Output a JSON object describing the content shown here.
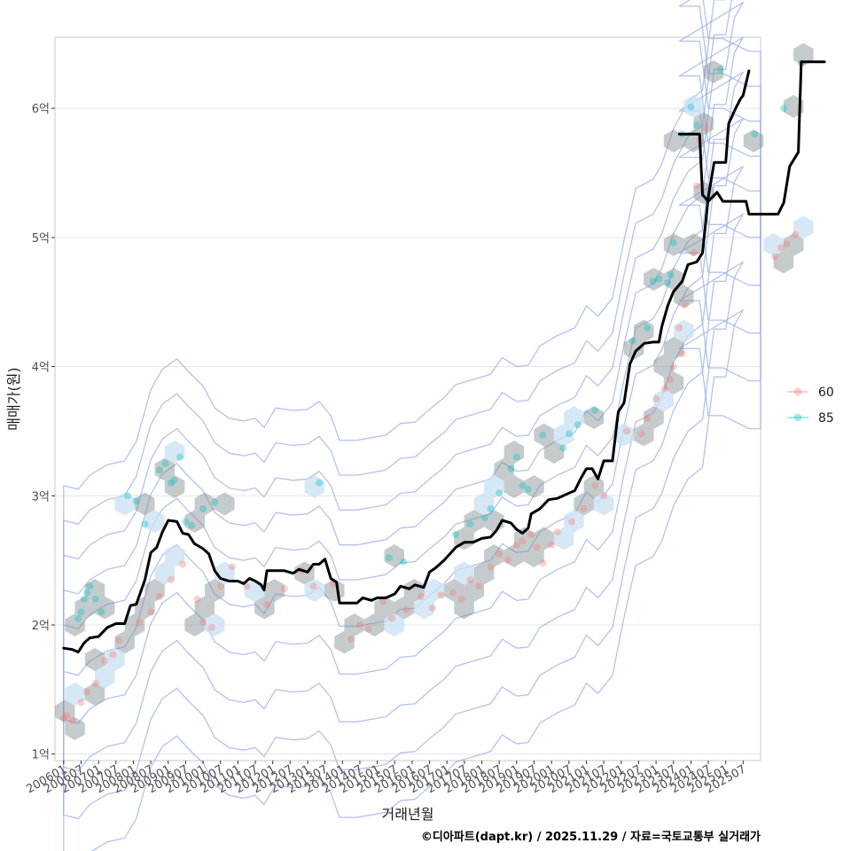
{
  "chart_data": {
    "type": "scatter",
    "xlabel": "거래년월",
    "ylabel": "매매가(원)",
    "caption": "©디아파트(dapt.kr) / 2025.11.29 / 자료=국토교통부 실거래가",
    "ylim": [
      0.95,
      6.55
    ],
    "y_ticks": [
      {
        "value": 1,
        "label": "1억"
      },
      {
        "value": 2,
        "label": "2억"
      },
      {
        "value": 3,
        "label": "3억"
      },
      {
        "value": 4,
        "label": "4억"
      },
      {
        "value": 5,
        "label": "5억"
      },
      {
        "value": 6,
        "label": "6억"
      }
    ],
    "x_range_index": [
      -3,
      240
    ],
    "x_ticks": [
      "200601",
      "200607",
      "200701",
      "200707",
      "200801",
      "200807",
      "200901",
      "200907",
      "201001",
      "201007",
      "201101",
      "201107",
      "201201",
      "201207",
      "201301",
      "201307",
      "201401",
      "201407",
      "201501",
      "201507",
      "201601",
      "201607",
      "201701",
      "201707",
      "201801",
      "201807",
      "201901",
      "201907",
      "202001",
      "202007",
      "202101",
      "202107",
      "202201",
      "202207",
      "202301",
      "202307",
      "202401",
      "202407",
      "202501",
      "202507"
    ],
    "legend": [
      {
        "name": "60",
        "color": "#F8766D"
      },
      {
        "name": "85",
        "color": "#00BFC4"
      }
    ],
    "colors": {
      "line": "#000000",
      "contour": "#9aaee8",
      "hex": "#7f8c8d",
      "hex_light": "#c8e0f2",
      "grid": "#e6e6e6"
    },
    "median_line": [
      [
        0,
        1.82
      ],
      [
        3,
        1.81
      ],
      [
        5,
        1.79
      ],
      [
        7,
        1.86
      ],
      [
        9,
        1.9
      ],
      [
        12,
        1.91
      ],
      [
        15,
        1.98
      ],
      [
        18,
        2.01
      ],
      [
        21,
        2.01
      ],
      [
        23,
        2.15
      ],
      [
        25,
        2.16
      ],
      [
        28,
        2.35
      ],
      [
        30,
        2.56
      ],
      [
        32,
        2.6
      ],
      [
        34,
        2.72
      ],
      [
        36,
        2.81
      ],
      [
        39,
        2.8
      ],
      [
        41,
        2.71
      ],
      [
        43,
        2.7
      ],
      [
        45,
        2.63
      ],
      [
        48,
        2.59
      ],
      [
        50,
        2.55
      ],
      [
        52,
        2.42
      ],
      [
        54,
        2.36
      ],
      [
        57,
        2.34
      ],
      [
        60,
        2.34
      ],
      [
        62,
        2.32
      ],
      [
        64,
        2.36
      ],
      [
        66,
        2.34
      ],
      [
        68,
        2.31
      ],
      [
        69,
        2.27
      ],
      [
        70,
        2.42
      ],
      [
        73,
        2.42
      ],
      [
        76,
        2.42
      ],
      [
        79,
        2.4
      ],
      [
        81,
        2.43
      ],
      [
        84,
        2.41
      ],
      [
        86,
        2.47
      ],
      [
        88,
        2.47
      ],
      [
        90,
        2.51
      ],
      [
        92,
        2.36
      ],
      [
        94,
        2.33
      ],
      [
        95,
        2.17
      ],
      [
        98,
        2.17
      ],
      [
        101,
        2.17
      ],
      [
        103,
        2.21
      ],
      [
        106,
        2.19
      ],
      [
        108,
        2.21
      ],
      [
        111,
        2.21
      ],
      [
        114,
        2.24
      ],
      [
        116,
        2.3
      ],
      [
        119,
        2.28
      ],
      [
        121,
        2.31
      ],
      [
        124,
        2.29
      ],
      [
        126,
        2.41
      ],
      [
        128,
        2.44
      ],
      [
        131,
        2.5
      ],
      [
        133,
        2.55
      ],
      [
        135,
        2.6
      ],
      [
        138,
        2.64
      ],
      [
        141,
        2.64
      ],
      [
        144,
        2.67
      ],
      [
        147,
        2.68
      ],
      [
        149,
        2.73
      ],
      [
        151,
        2.81
      ],
      [
        154,
        2.79
      ],
      [
        156,
        2.74
      ],
      [
        158,
        2.71
      ],
      [
        160,
        2.75
      ],
      [
        161,
        2.86
      ],
      [
        164,
        2.9
      ],
      [
        167,
        2.97
      ],
      [
        170,
        2.98
      ],
      [
        173,
        3.01
      ],
      [
        176,
        3.04
      ],
      [
        178,
        3.13
      ],
      [
        180,
        3.21
      ],
      [
        182,
        3.21
      ],
      [
        184,
        3.13
      ],
      [
        186,
        3.27
      ],
      [
        189,
        3.27
      ],
      [
        191,
        3.65
      ],
      [
        193,
        3.72
      ],
      [
        195,
        4.02
      ],
      [
        197,
        4.12
      ],
      [
        200,
        4.18
      ],
      [
        203,
        4.19
      ],
      [
        205,
        4.19
      ],
      [
        206,
        4.31
      ],
      [
        208,
        4.47
      ],
      [
        210,
        4.58
      ],
      [
        213,
        4.66
      ],
      [
        215,
        4.79
      ],
      [
        218,
        4.81
      ],
      [
        220,
        4.88
      ],
      [
        222,
        5.31
      ],
      [
        224,
        5.58
      ],
      [
        226,
        5.58
      ],
      [
        228,
        5.58
      ],
      [
        229,
        5.88
      ],
      [
        231,
        5.98
      ],
      [
        233,
        6.07
      ],
      [
        234,
        6.1
      ],
      [
        236,
        6.29
      ]
    ],
    "median_line_2": [
      [
        212,
        5.8
      ],
      [
        218,
        5.8
      ],
      [
        219,
        5.8
      ],
      [
        220,
        5.33
      ],
      [
        222,
        5.28
      ],
      [
        225,
        5.35
      ],
      [
        227,
        5.28
      ],
      [
        235,
        5.28
      ],
      [
        236,
        5.18
      ],
      [
        240,
        5.18
      ]
    ],
    "median_line_3": [
      [
        240,
        5.18
      ],
      [
        246,
        5.18
      ],
      [
        248,
        5.27
      ],
      [
        250,
        5.55
      ],
      [
        253,
        5.66
      ],
      [
        254,
        6.36
      ],
      [
        262,
        6.36
      ]
    ],
    "series": [
      {
        "name": "60",
        "points": [
          [
            0,
            1.28
          ],
          [
            1,
            1.3
          ],
          [
            3,
            1.26
          ],
          [
            6,
            1.4
          ],
          [
            8,
            1.48
          ],
          [
            11,
            1.55
          ],
          [
            14,
            1.72
          ],
          [
            17,
            1.77
          ],
          [
            19,
            1.88
          ],
          [
            26,
            2.02
          ],
          [
            30,
            2.1
          ],
          [
            33,
            2.22
          ],
          [
            37,
            2.35
          ],
          [
            41,
            2.47
          ],
          [
            46,
            2.2
          ],
          [
            48,
            2.02
          ],
          [
            51,
            1.98
          ],
          [
            54,
            2.3
          ],
          [
            58,
            2.45
          ],
          [
            63,
            2.3
          ],
          [
            70,
            2.16
          ],
          [
            76,
            2.28
          ],
          [
            82,
            2.42
          ],
          [
            86,
            2.3
          ],
          [
            93,
            2.32
          ],
          [
            99,
            1.89
          ],
          [
            102,
            2
          ],
          [
            105,
            1.97
          ],
          [
            110,
            2.18
          ],
          [
            113,
            2.05
          ],
          [
            118,
            2.12
          ],
          [
            123,
            2.22
          ],
          [
            127,
            2.13
          ],
          [
            130,
            2.23
          ],
          [
            134,
            2.25
          ],
          [
            137,
            2.2
          ],
          [
            140,
            2.35
          ],
          [
            143,
            2.3
          ],
          [
            147,
            2.45
          ],
          [
            150,
            2.55
          ],
          [
            153,
            2.5
          ],
          [
            156,
            2.62
          ],
          [
            158,
            2.65
          ],
          [
            161,
            2.7
          ],
          [
            163,
            2.6
          ],
          [
            165,
            2.48
          ],
          [
            168,
            2.62
          ],
          [
            170,
            2.72
          ],
          [
            175,
            2.8
          ],
          [
            179,
            2.9
          ],
          [
            183,
            3.08
          ],
          [
            186,
            3
          ],
          [
            194,
            3.5
          ],
          [
            199,
            3.48
          ],
          [
            201,
            3.6
          ],
          [
            204,
            3.75
          ],
          [
            207,
            3.83
          ],
          [
            209,
            3.9
          ],
          [
            210,
            4
          ],
          [
            212,
            4.3
          ],
          [
            213,
            4.1
          ],
          [
            214,
            4.48
          ],
          [
            217,
            4.88
          ],
          [
            218,
            5.4
          ],
          [
            219,
            5.75
          ],
          [
            221,
            5.85
          ],
          [
            245,
            4.85
          ],
          [
            247,
            4.92
          ],
          [
            249,
            4.95
          ],
          [
            252,
            5.02
          ]
        ]
      },
      {
        "name": "85",
        "points": [
          [
            5,
            2.05
          ],
          [
            6,
            2.1
          ],
          [
            7,
            2.2
          ],
          [
            8,
            2.25
          ],
          [
            9,
            2.3
          ],
          [
            11,
            2.2
          ],
          [
            13,
            2.1
          ],
          [
            22,
            3
          ],
          [
            25,
            2.96
          ],
          [
            28,
            2.78
          ],
          [
            33,
            3.2
          ],
          [
            35,
            3.25
          ],
          [
            37,
            3.1
          ],
          [
            38,
            3.12
          ],
          [
            40,
            3.3
          ],
          [
            42,
            2.8
          ],
          [
            44,
            2.77
          ],
          [
            48,
            2.9
          ],
          [
            52,
            2.95
          ],
          [
            88,
            3.1
          ],
          [
            112,
            2.52
          ],
          [
            117,
            2.49
          ],
          [
            135,
            2.7
          ],
          [
            140,
            2.78
          ],
          [
            145,
            2.83
          ],
          [
            147,
            2.9
          ],
          [
            150,
            3.02
          ],
          [
            154,
            3.21
          ],
          [
            156,
            3.3
          ],
          [
            158,
            3.08
          ],
          [
            160,
            3.05
          ],
          [
            165,
            3.47
          ],
          [
            172,
            3.37
          ],
          [
            174,
            3.48
          ],
          [
            177,
            3.55
          ],
          [
            183,
            3.66
          ],
          [
            196,
            4.2
          ],
          [
            201,
            4.3
          ],
          [
            203,
            4.66
          ],
          [
            205,
            4.68
          ],
          [
            208,
            4.65
          ],
          [
            209,
            4.71
          ],
          [
            210,
            4.96
          ],
          [
            213,
            5.8
          ],
          [
            216,
            6.01
          ],
          [
            218,
            5.87
          ],
          [
            226,
            6.3
          ],
          [
            238,
            5.8
          ],
          [
            248,
            6
          ],
          [
            254,
            6.35
          ]
        ]
      }
    ]
  }
}
